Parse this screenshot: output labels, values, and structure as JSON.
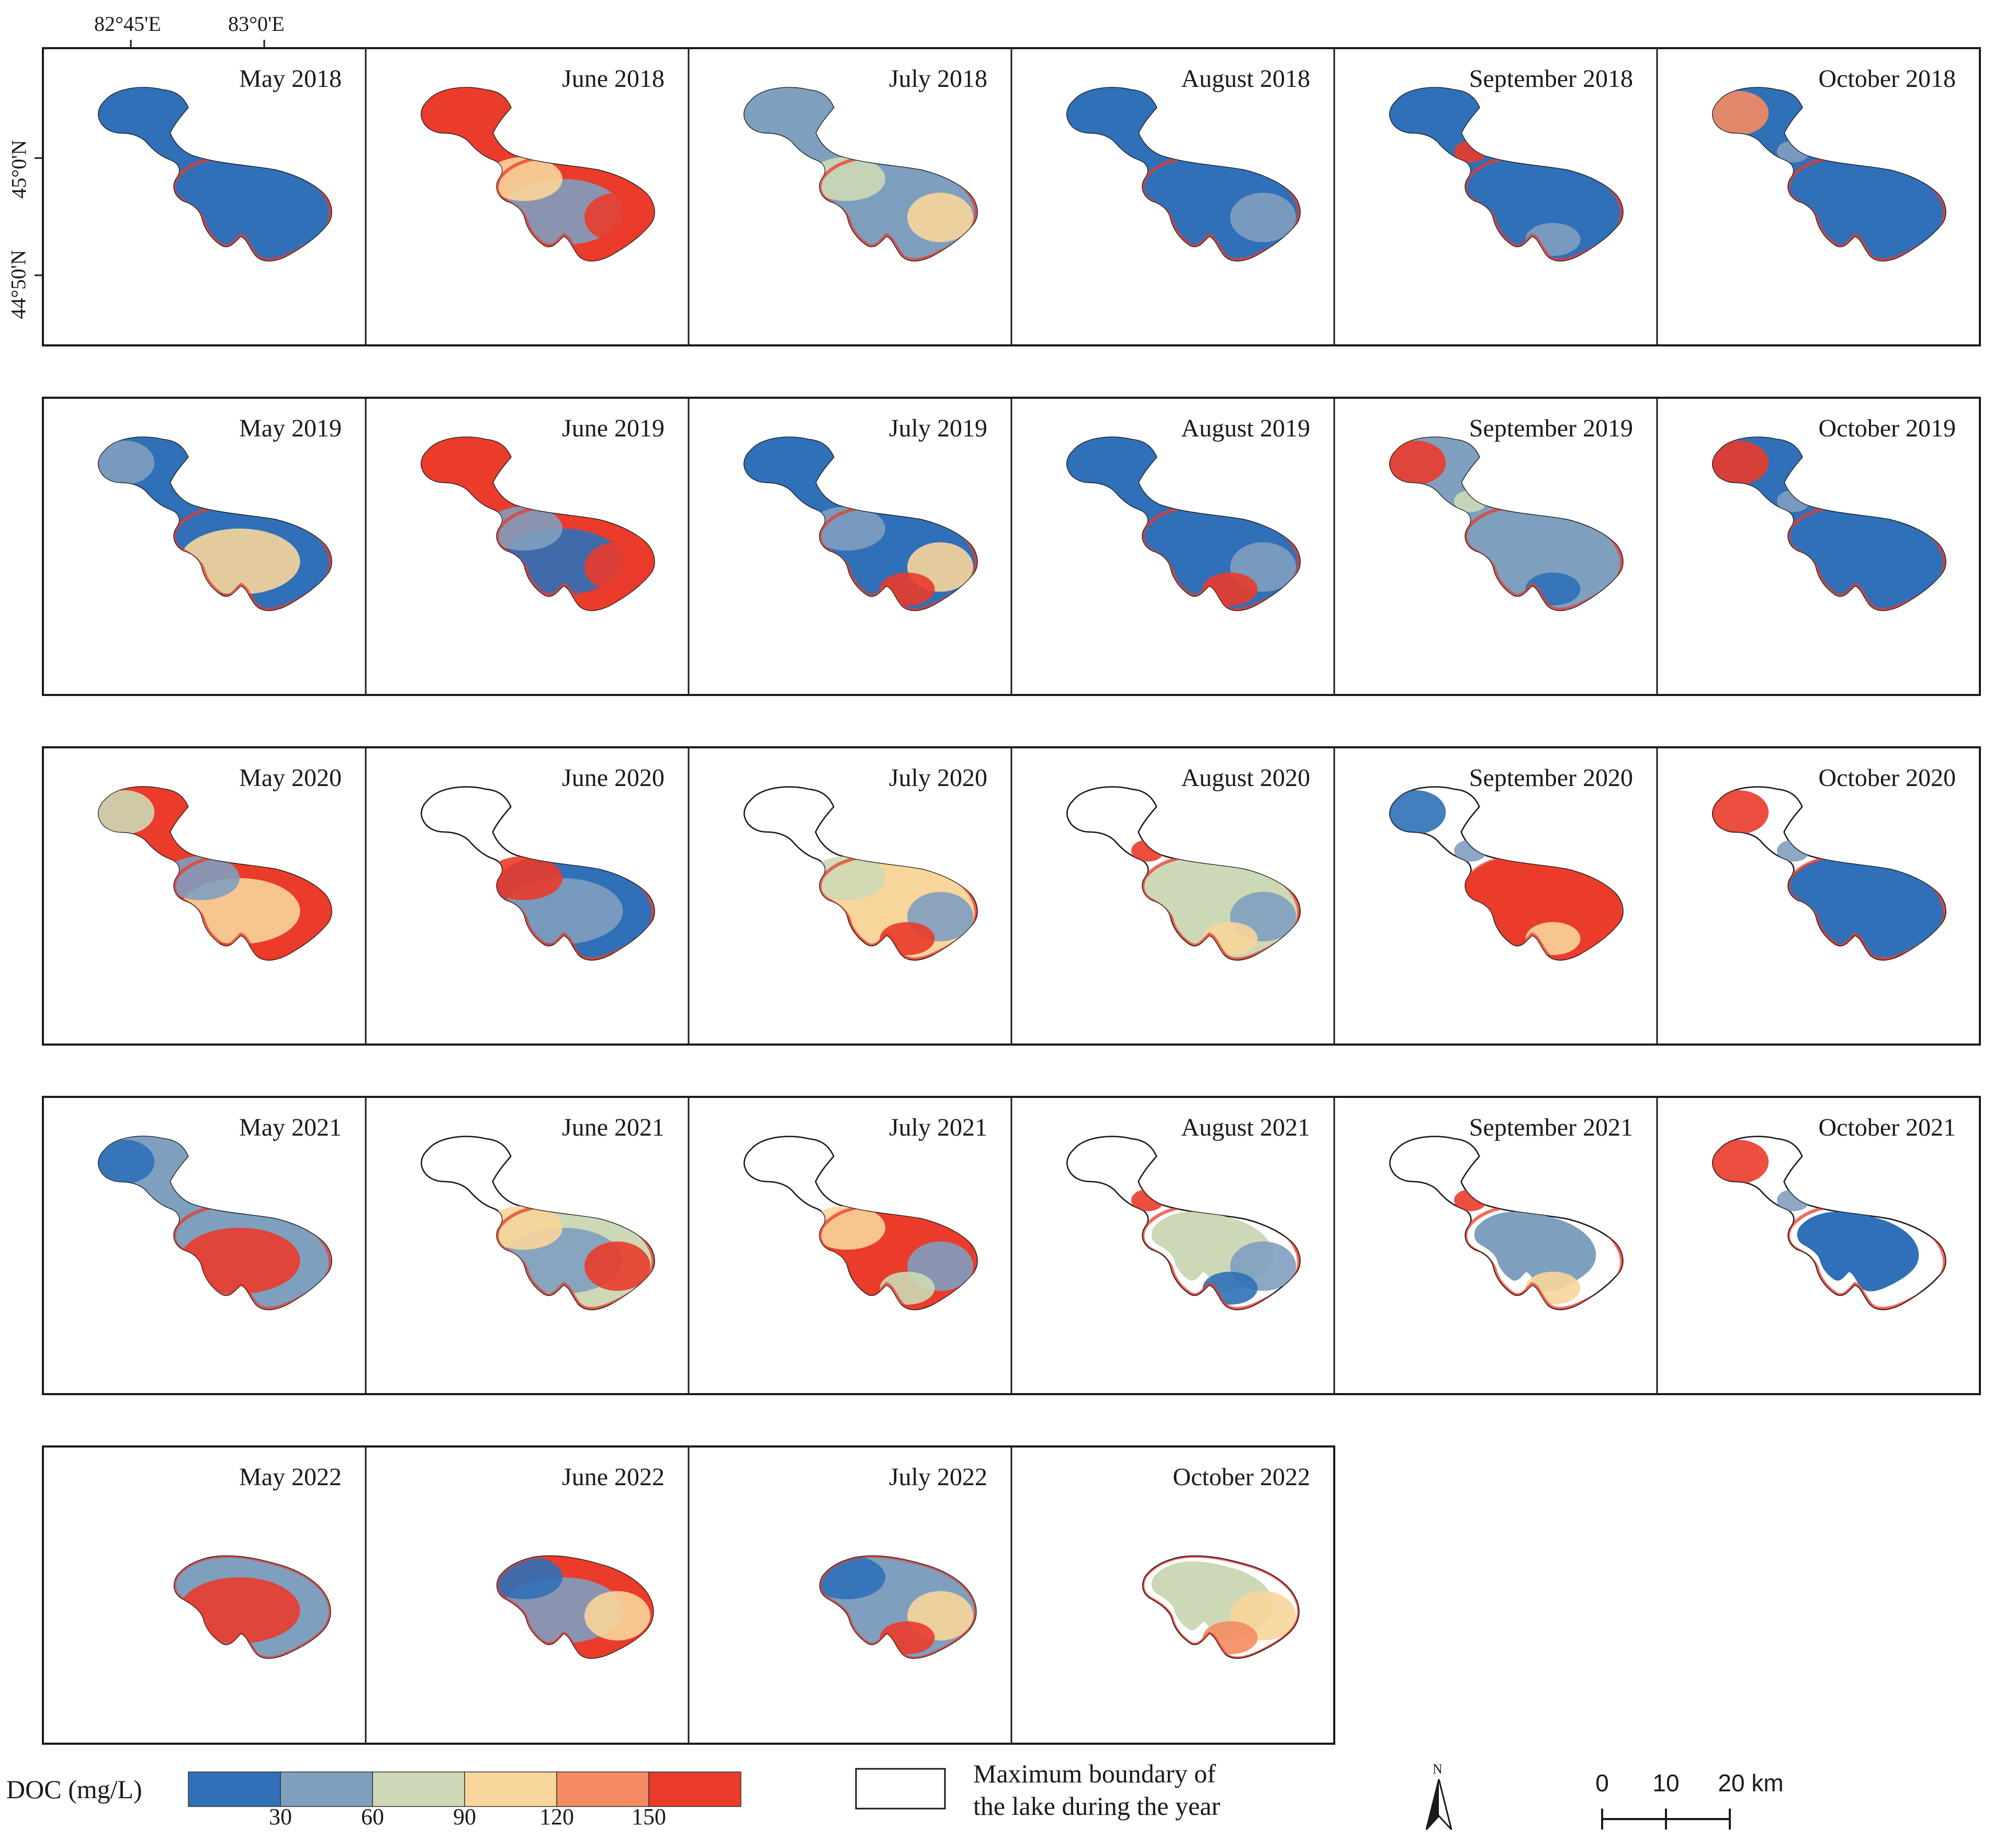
{
  "coordinates": {
    "longitude_labels": [
      "82°45'E",
      "83°0'E"
    ],
    "latitude_labels": [
      "45°0'N",
      "44°50'N"
    ]
  },
  "colors": {
    "class_1": "#2f70b8",
    "class_2": "#7f9fbf",
    "class_3": "#cdd9b6",
    "class_4": "#f8d59a",
    "class_5": "#f58b63",
    "class_6": "#ea3b2b"
  },
  "panels": [
    {
      "label": "May 2018",
      "classes": [
        1
      ]
    },
    {
      "label": "June 2018",
      "classes": [
        6,
        2,
        4,
        6
      ]
    },
    {
      "label": "July 2018",
      "classes": [
        2,
        3,
        4
      ]
    },
    {
      "label": "August 2018",
      "classes": [
        1,
        2
      ]
    },
    {
      "label": "September 2018",
      "classes": [
        1,
        2,
        6
      ]
    },
    {
      "label": "October 2018",
      "classes": [
        1,
        2,
        5
      ]
    },
    {
      "label": "May 2019",
      "classes": [
        1,
        2,
        4
      ]
    },
    {
      "label": "June 2019",
      "classes": [
        6,
        1,
        2,
        6
      ]
    },
    {
      "label": "July 2019",
      "classes": [
        1,
        2,
        4,
        6
      ]
    },
    {
      "label": "August 2019",
      "classes": [
        1,
        2,
        6
      ]
    },
    {
      "label": "September 2019",
      "classes": [
        2,
        1,
        3,
        6
      ]
    },
    {
      "label": "October 2019",
      "classes": [
        1,
        2,
        6
      ]
    },
    {
      "label": "May 2020",
      "classes": [
        6,
        3,
        4,
        2
      ]
    },
    {
      "label": "June 2020",
      "classes": [
        1,
        2,
        6
      ]
    },
    {
      "label": "July 2020",
      "classes": [
        4,
        3,
        2,
        6
      ]
    },
    {
      "label": "August 2020",
      "classes": [
        3,
        2,
        4,
        6
      ]
    },
    {
      "label": "September 2020",
      "classes": [
        6,
        4,
        2,
        1
      ]
    },
    {
      "label": "October 2020",
      "classes": [
        1,
        2,
        6
      ]
    },
    {
      "label": "May 2021",
      "classes": [
        2,
        1,
        6
      ]
    },
    {
      "label": "June 2021",
      "classes": [
        3,
        2,
        4,
        6
      ]
    },
    {
      "label": "July 2021",
      "classes": [
        6,
        4,
        2,
        3
      ]
    },
    {
      "label": "August 2021",
      "classes": [
        3,
        2,
        1,
        6
      ]
    },
    {
      "label": "September 2021",
      "classes": [
        2,
        4,
        6
      ]
    },
    {
      "label": "October 2021",
      "classes": [
        1,
        2,
        6
      ]
    },
    {
      "label": "May 2022",
      "classes": [
        2,
        1,
        6
      ]
    },
    {
      "label": "June 2022",
      "classes": [
        6,
        2,
        1,
        4
      ]
    },
    {
      "label": "July 2022",
      "classes": [
        2,
        1,
        4,
        6
      ]
    },
    {
      "label": "October 2022",
      "classes": [
        3,
        4,
        5,
        2
      ]
    }
  ],
  "legend": {
    "title": "DOC (mg/L)",
    "ticks": [
      "30",
      "60",
      "90",
      "120",
      "150"
    ],
    "boundary_label_line1": "Maximum boundary of",
    "boundary_label_line2": "the lake during the year"
  },
  "north_arrow": {
    "label": "N"
  },
  "scale_bar": {
    "labels": [
      "0",
      "10",
      "20 km"
    ]
  }
}
